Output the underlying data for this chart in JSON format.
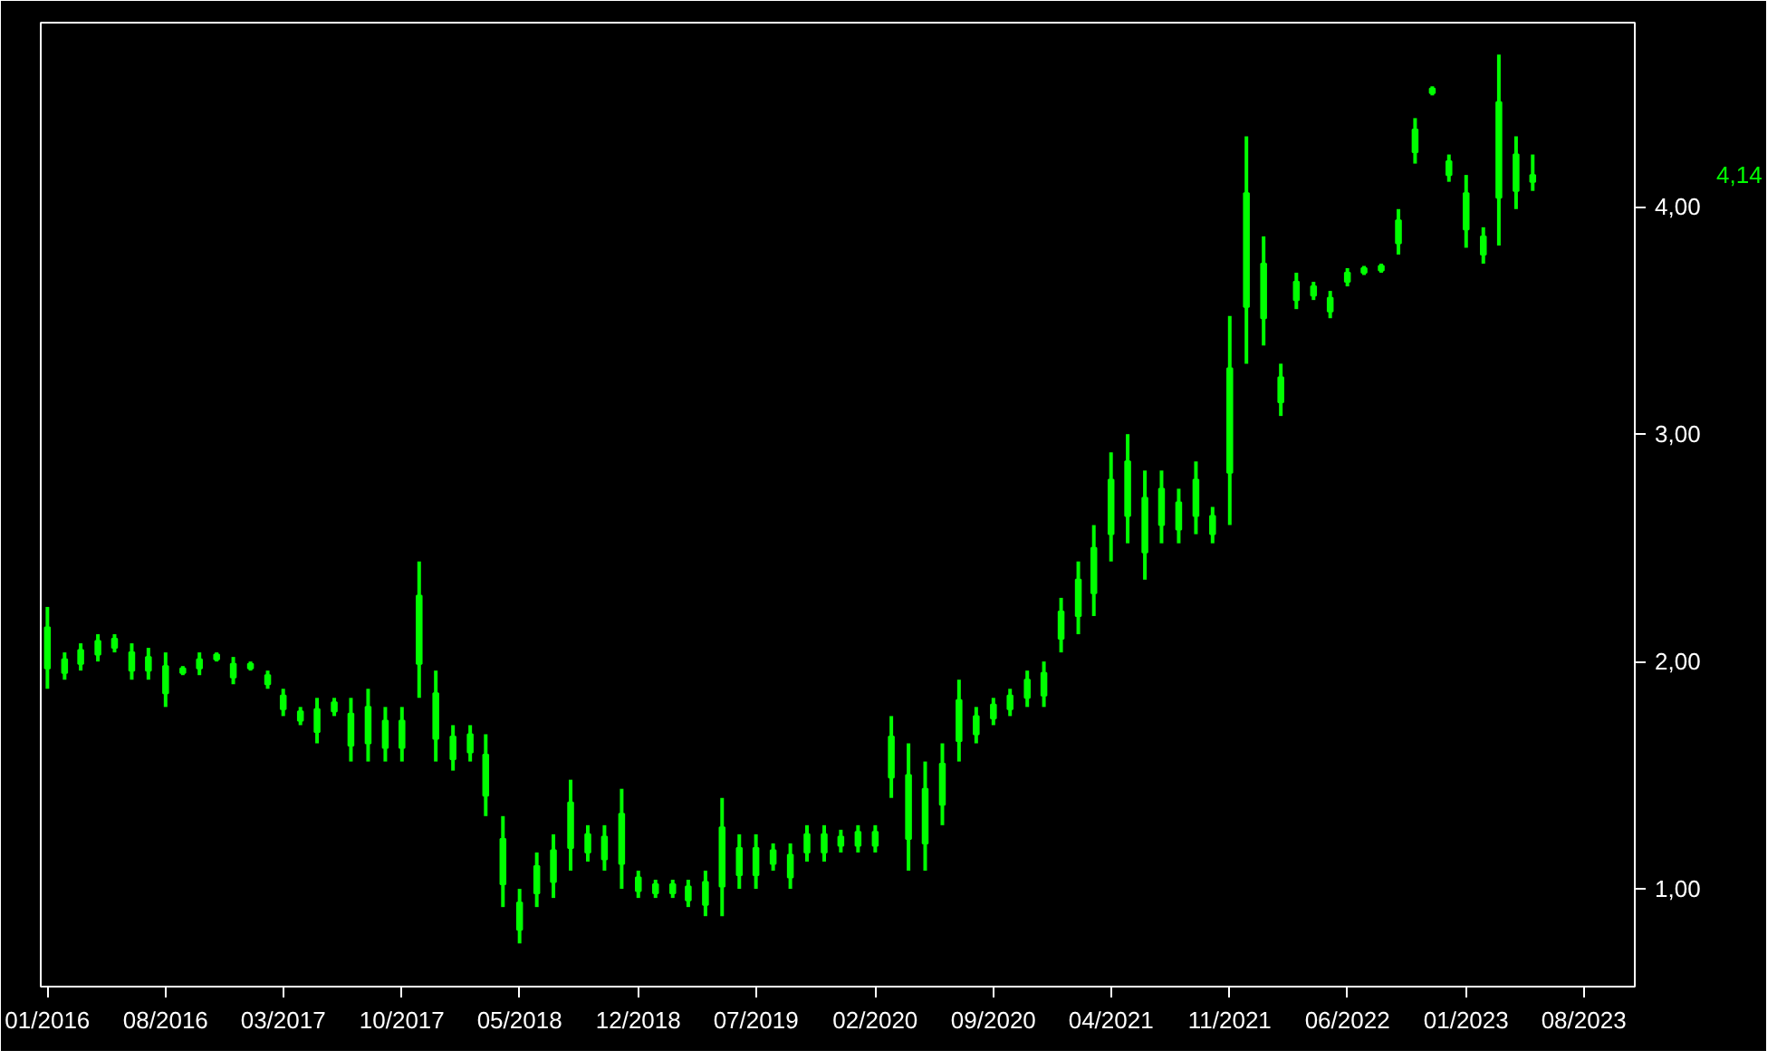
{
  "chart_data": {
    "type": "candlestick",
    "color": "#00ff00",
    "x": [
      "2016-01",
      "2016-02",
      "2016-03",
      "2016-04",
      "2016-05",
      "2016-06",
      "2016-07",
      "2016-08",
      "2016-09",
      "2016-10",
      "2016-11",
      "2016-12",
      "2017-01",
      "2017-02",
      "2017-03",
      "2017-04",
      "2017-05",
      "2017-06",
      "2017-07",
      "2017-08",
      "2017-09",
      "2017-10",
      "2017-11",
      "2017-12",
      "2018-01",
      "2018-02",
      "2018-03",
      "2018-04",
      "2018-05",
      "2018-06",
      "2018-07",
      "2018-08",
      "2018-09",
      "2018-10",
      "2018-11",
      "2018-12",
      "2019-01",
      "2019-02",
      "2019-03",
      "2019-04",
      "2019-05",
      "2019-06",
      "2019-07",
      "2019-08",
      "2019-09",
      "2019-10",
      "2019-11",
      "2019-12",
      "2020-01",
      "2020-02",
      "2020-03",
      "2020-04",
      "2020-05",
      "2020-06",
      "2020-07",
      "2020-08",
      "2020-09",
      "2020-10",
      "2020-11",
      "2020-12",
      "2021-01",
      "2021-02",
      "2021-03",
      "2021-04",
      "2021-05",
      "2021-06",
      "2021-07",
      "2021-08",
      "2021-09",
      "2021-10",
      "2021-11",
      "2021-12",
      "2022-01",
      "2022-02",
      "2022-03",
      "2022-04",
      "2022-05",
      "2022-06",
      "2022-07",
      "2022-08",
      "2022-09",
      "2022-10",
      "2022-11",
      "2022-12",
      "2023-01",
      "2023-02",
      "2023-03",
      "2023-04",
      "2023-05"
    ],
    "ohlc": [
      [
        1.97,
        2.24,
        1.88,
        2.15
      ],
      [
        1.95,
        2.04,
        1.92,
        2.01
      ],
      [
        1.99,
        2.08,
        1.96,
        2.05
      ],
      [
        2.03,
        2.12,
        2.0,
        2.09
      ],
      [
        2.06,
        2.12,
        2.04,
        2.1
      ],
      [
        1.96,
        2.08,
        1.92,
        2.04
      ],
      [
        1.96,
        2.06,
        1.92,
        2.02
      ],
      [
        1.86,
        2.04,
        1.8,
        1.98
      ],
      [
        1.95,
        1.98,
        1.94,
        1.97
      ],
      [
        1.97,
        2.04,
        1.94,
        2.01
      ],
      [
        2.01,
        2.04,
        2.0,
        2.03
      ],
      [
        1.93,
        2.02,
        1.9,
        1.99
      ],
      [
        1.97,
        2.0,
        1.96,
        1.99
      ],
      [
        1.9,
        1.96,
        1.88,
        1.94
      ],
      [
        1.79,
        1.88,
        1.76,
        1.85
      ],
      [
        1.74,
        1.8,
        1.72,
        1.78
      ],
      [
        1.69,
        1.84,
        1.64,
        1.79
      ],
      [
        1.78,
        1.84,
        1.76,
        1.82
      ],
      [
        1.63,
        1.84,
        1.56,
        1.77
      ],
      [
        1.64,
        1.88,
        1.56,
        1.8
      ],
      [
        1.62,
        1.8,
        1.56,
        1.74
      ],
      [
        1.62,
        1.8,
        1.56,
        1.74
      ],
      [
        1.99,
        2.44,
        1.84,
        2.29
      ],
      [
        1.66,
        1.96,
        1.56,
        1.86
      ],
      [
        1.57,
        1.72,
        1.52,
        1.67
      ],
      [
        1.6,
        1.72,
        1.56,
        1.68
      ],
      [
        1.41,
        1.68,
        1.32,
        1.59
      ],
      [
        1.02,
        1.32,
        0.92,
        1.22
      ],
      [
        0.82,
        1.0,
        0.76,
        0.94
      ],
      [
        0.98,
        1.16,
        0.92,
        1.1
      ],
      [
        1.03,
        1.24,
        0.96,
        1.17
      ],
      [
        1.18,
        1.48,
        1.08,
        1.38
      ],
      [
        1.16,
        1.28,
        1.12,
        1.24
      ],
      [
        1.13,
        1.28,
        1.08,
        1.23
      ],
      [
        1.11,
        1.44,
        1.0,
        1.33
      ],
      [
        0.99,
        1.08,
        0.96,
        1.05
      ],
      [
        0.98,
        1.04,
        0.96,
        1.02
      ],
      [
        0.98,
        1.04,
        0.96,
        1.02
      ],
      [
        0.95,
        1.04,
        0.92,
        1.01
      ],
      [
        0.93,
        1.08,
        0.88,
        1.03
      ],
      [
        1.01,
        1.4,
        0.88,
        1.27
      ],
      [
        1.06,
        1.24,
        1.0,
        1.18
      ],
      [
        1.06,
        1.24,
        1.0,
        1.18
      ],
      [
        1.11,
        1.2,
        1.08,
        1.17
      ],
      [
        1.05,
        1.2,
        1.0,
        1.15
      ],
      [
        1.16,
        1.28,
        1.12,
        1.24
      ],
      [
        1.16,
        1.28,
        1.12,
        1.24
      ],
      [
        1.19,
        1.26,
        1.16,
        1.23
      ],
      [
        1.19,
        1.28,
        1.16,
        1.25
      ],
      [
        1.19,
        1.28,
        1.16,
        1.25
      ],
      [
        1.49,
        1.76,
        1.4,
        1.67
      ],
      [
        1.22,
        1.64,
        1.08,
        1.5
      ],
      [
        1.2,
        1.56,
        1.08,
        1.44
      ],
      [
        1.37,
        1.64,
        1.28,
        1.55
      ],
      [
        1.65,
        1.92,
        1.56,
        1.83
      ],
      [
        1.68,
        1.8,
        1.64,
        1.76
      ],
      [
        1.75,
        1.84,
        1.72,
        1.81
      ],
      [
        1.79,
        1.88,
        1.76,
        1.85
      ],
      [
        1.84,
        1.96,
        1.8,
        1.92
      ],
      [
        1.85,
        2.0,
        1.8,
        1.95
      ],
      [
        2.1,
        2.28,
        2.04,
        2.22
      ],
      [
        2.2,
        2.44,
        2.12,
        2.36
      ],
      [
        2.3,
        2.6,
        2.2,
        2.5
      ],
      [
        2.56,
        2.92,
        2.44,
        2.8
      ],
      [
        2.64,
        3.0,
        2.52,
        2.88
      ],
      [
        2.48,
        2.84,
        2.36,
        2.72
      ],
      [
        2.6,
        2.84,
        2.52,
        2.76
      ],
      [
        2.58,
        2.76,
        2.52,
        2.7
      ],
      [
        2.64,
        2.88,
        2.56,
        2.8
      ],
      [
        2.56,
        2.68,
        2.52,
        2.64
      ],
      [
        2.83,
        3.52,
        2.6,
        3.29
      ],
      [
        3.56,
        4.31,
        3.31,
        4.06
      ],
      [
        3.51,
        3.87,
        3.39,
        3.75
      ],
      [
        3.14,
        3.31,
        3.08,
        3.25
      ],
      [
        3.59,
        3.71,
        3.55,
        3.67
      ],
      [
        3.61,
        3.67,
        3.59,
        3.65
      ],
      [
        3.54,
        3.63,
        3.51,
        3.6
      ],
      [
        3.67,
        3.73,
        3.65,
        3.71
      ],
      [
        3.71,
        3.74,
        3.7,
        3.73
      ],
      [
        3.72,
        3.75,
        3.71,
        3.74
      ],
      [
        3.84,
        3.99,
        3.79,
        3.94
      ],
      [
        4.24,
        4.39,
        4.19,
        4.34
      ],
      [
        4.5,
        4.53,
        4.49,
        4.52
      ],
      [
        4.14,
        4.23,
        4.11,
        4.2
      ],
      [
        3.9,
        4.14,
        3.82,
        4.06
      ],
      [
        3.79,
        3.91,
        3.75,
        3.87
      ],
      [
        4.04,
        4.67,
        3.83,
        4.46
      ],
      [
        4.07,
        4.31,
        3.99,
        4.23
      ],
      [
        4.11,
        4.23,
        4.07,
        4.14
      ]
    ],
    "xlim": [
      "2015-12-20",
      "2023-11-01"
    ],
    "xticks": [
      {
        "value": "2016-01",
        "label": "01/2016"
      },
      {
        "value": "2016-08",
        "label": "08/2016"
      },
      {
        "value": "2017-03",
        "label": "03/2017"
      },
      {
        "value": "2017-10",
        "label": "10/2017"
      },
      {
        "value": "2018-05",
        "label": "05/2018"
      },
      {
        "value": "2018-12",
        "label": "12/2018"
      },
      {
        "value": "2019-07",
        "label": "07/2019"
      },
      {
        "value": "2020-02",
        "label": "02/2020"
      },
      {
        "value": "2020-09",
        "label": "09/2020"
      },
      {
        "value": "2021-04",
        "label": "04/2021"
      },
      {
        "value": "2021-11",
        "label": "11/2021"
      },
      {
        "value": "2022-06",
        "label": "06/2022"
      },
      {
        "value": "2023-01",
        "label": "01/2023"
      },
      {
        "value": "2023-08",
        "label": "08/2023"
      }
    ],
    "ylim": [
      0.57,
      4.81
    ],
    "yticks": [
      {
        "value": 1,
        "label": "1,00"
      },
      {
        "value": 2,
        "label": "2,00"
      },
      {
        "value": 3,
        "label": "3,00"
      },
      {
        "value": 4,
        "label": "4,00"
      }
    ],
    "annotations": [
      "4,14"
    ],
    "grid": false
  }
}
